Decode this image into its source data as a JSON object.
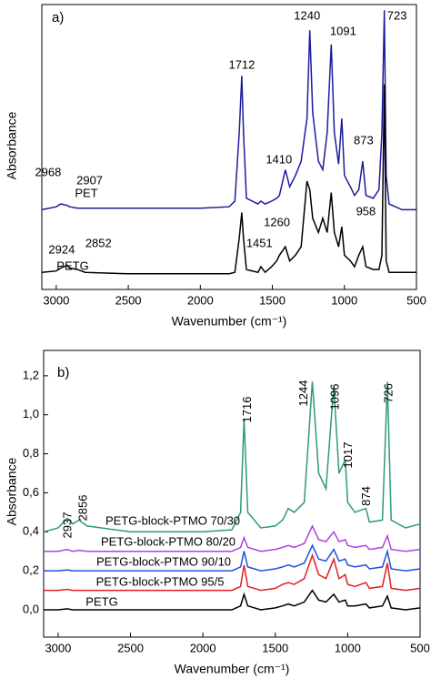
{
  "chart_data": [
    {
      "type": "line",
      "panel_label": "a)",
      "x_label": "Wavenumber (cm⁻¹)",
      "y_label": "Absorbance",
      "xlim": [
        3100,
        500
      ],
      "ylim": [
        0,
        1
      ],
      "xticks": [
        3000,
        2500,
        2000,
        1500,
        1000,
        500
      ],
      "x": [
        3100,
        3000,
        2968,
        2924,
        2907,
        2852,
        2800,
        2500,
        2000,
        1800,
        1760,
        1730,
        1712,
        1700,
        1680,
        1600,
        1580,
        1550,
        1505,
        1470,
        1451,
        1410,
        1380,
        1340,
        1300,
        1260,
        1240,
        1220,
        1180,
        1150,
        1120,
        1091,
        1070,
        1040,
        1018,
        1000,
        958,
        930,
        900,
        873,
        850,
        800,
        760,
        740,
        723,
        710,
        690,
        600,
        500
      ],
      "series": [
        {
          "name": "PET",
          "color": "#1c1ca0",
          "values": [
            0.28,
            0.29,
            0.3,
            0.295,
            0.29,
            0.285,
            0.285,
            0.285,
            0.285,
            0.29,
            0.31,
            0.55,
            0.75,
            0.55,
            0.32,
            0.3,
            0.31,
            0.3,
            0.31,
            0.32,
            0.33,
            0.42,
            0.36,
            0.4,
            0.45,
            0.6,
            0.91,
            0.62,
            0.45,
            0.42,
            0.55,
            0.86,
            0.55,
            0.44,
            0.6,
            0.4,
            0.36,
            0.33,
            0.35,
            0.45,
            0.33,
            0.32,
            0.35,
            0.55,
            0.98,
            0.4,
            0.3,
            0.28,
            0.28
          ]
        },
        {
          "name": "PETG",
          "color": "#000000",
          "values": [
            0.06,
            0.065,
            0.075,
            0.085,
            0.075,
            0.07,
            0.06,
            0.055,
            0.055,
            0.055,
            0.06,
            0.18,
            0.27,
            0.18,
            0.07,
            0.06,
            0.08,
            0.06,
            0.08,
            0.1,
            0.12,
            0.15,
            0.1,
            0.12,
            0.15,
            0.38,
            0.35,
            0.25,
            0.2,
            0.25,
            0.2,
            0.34,
            0.2,
            0.15,
            0.22,
            0.12,
            0.1,
            0.08,
            0.12,
            0.15,
            0.08,
            0.07,
            0.07,
            0.12,
            0.72,
            0.1,
            0.06,
            0.06,
            0.06
          ]
        }
      ],
      "annotations": [
        2968,
        2907,
        2924,
        2852,
        1712,
        1451,
        1410,
        1260,
        1240,
        1091,
        958,
        873,
        723
      ]
    },
    {
      "type": "line",
      "panel_label": "b)",
      "x_label": "Wavenumber (cm⁻¹)",
      "y_label": "Absorbance",
      "xlim": [
        3100,
        500
      ],
      "ylim": [
        -0.14,
        1.33
      ],
      "xticks": [
        3000,
        2500,
        2000,
        1500,
        1000,
        500
      ],
      "yticks": [
        {
          "value": 0,
          "label": "0,0"
        },
        {
          "value": 0.2,
          "label": "0,2"
        },
        {
          "value": 0.4,
          "label": "0,4"
        },
        {
          "value": 0.6,
          "label": "0,6"
        },
        {
          "value": 0.8,
          "label": "0,8"
        },
        {
          "value": 1.0,
          "label": "1,0"
        },
        {
          "value": 1.2,
          "label": "1,2"
        }
      ],
      "x": [
        3100,
        3000,
        2937,
        2900,
        2856,
        2800,
        2500,
        2000,
        1800,
        1740,
        1716,
        1690,
        1600,
        1500,
        1450,
        1410,
        1370,
        1300,
        1244,
        1200,
        1150,
        1096,
        1060,
        1017,
        1000,
        950,
        874,
        850,
        760,
        726,
        700,
        600,
        500
      ],
      "series": [
        {
          "name": "PETG-block-PTMO 70/30",
          "color": "#2e9a78",
          "values": [
            0.4,
            0.42,
            0.47,
            0.44,
            0.46,
            0.43,
            0.4,
            0.4,
            0.41,
            0.5,
            0.98,
            0.5,
            0.42,
            0.43,
            0.46,
            0.52,
            0.5,
            0.55,
            1.17,
            0.7,
            0.62,
            1.15,
            0.7,
            0.77,
            0.55,
            0.5,
            0.52,
            0.45,
            0.46,
            1.17,
            0.46,
            0.42,
            0.44
          ]
        },
        {
          "name": "PETG-block-PTMO 80/20",
          "color": "#b040e0",
          "values": [
            0.3,
            0.3,
            0.31,
            0.3,
            0.305,
            0.3,
            0.3,
            0.3,
            0.3,
            0.32,
            0.37,
            0.32,
            0.3,
            0.31,
            0.32,
            0.33,
            0.32,
            0.34,
            0.43,
            0.36,
            0.35,
            0.4,
            0.35,
            0.36,
            0.33,
            0.32,
            0.33,
            0.31,
            0.32,
            0.38,
            0.31,
            0.3,
            0.31
          ]
        },
        {
          "name": "PETG-block-PTMO 90/10",
          "color": "#2050e0",
          "values": [
            0.2,
            0.2,
            0.205,
            0.2,
            0.2,
            0.2,
            0.2,
            0.2,
            0.2,
            0.22,
            0.3,
            0.22,
            0.2,
            0.21,
            0.22,
            0.23,
            0.22,
            0.24,
            0.33,
            0.26,
            0.25,
            0.31,
            0.25,
            0.26,
            0.23,
            0.22,
            0.23,
            0.21,
            0.22,
            0.3,
            0.21,
            0.2,
            0.21
          ]
        },
        {
          "name": "PETG-block-PTMO 95/5",
          "color": "#e02020",
          "values": [
            0.1,
            0.1,
            0.105,
            0.1,
            0.1,
            0.1,
            0.1,
            0.1,
            0.1,
            0.12,
            0.23,
            0.12,
            0.1,
            0.11,
            0.13,
            0.14,
            0.13,
            0.16,
            0.28,
            0.18,
            0.16,
            0.26,
            0.16,
            0.18,
            0.13,
            0.12,
            0.14,
            0.11,
            0.12,
            0.24,
            0.11,
            0.1,
            0.11
          ]
        },
        {
          "name": "PETG",
          "color": "#000000",
          "values": [
            0.0,
            0.0,
            0.005,
            0.0,
            0.0,
            0.0,
            0.0,
            0.0,
            0.0,
            0.02,
            0.08,
            0.02,
            0.0,
            0.01,
            0.02,
            0.03,
            0.02,
            0.04,
            0.1,
            0.05,
            0.04,
            0.08,
            0.04,
            0.05,
            0.02,
            0.02,
            0.03,
            0.01,
            0.02,
            0.07,
            0.01,
            0.0,
            0.01
          ]
        }
      ],
      "annotations": [
        2937,
        2856,
        1716,
        1244,
        1096,
        1017,
        874,
        726
      ]
    }
  ]
}
